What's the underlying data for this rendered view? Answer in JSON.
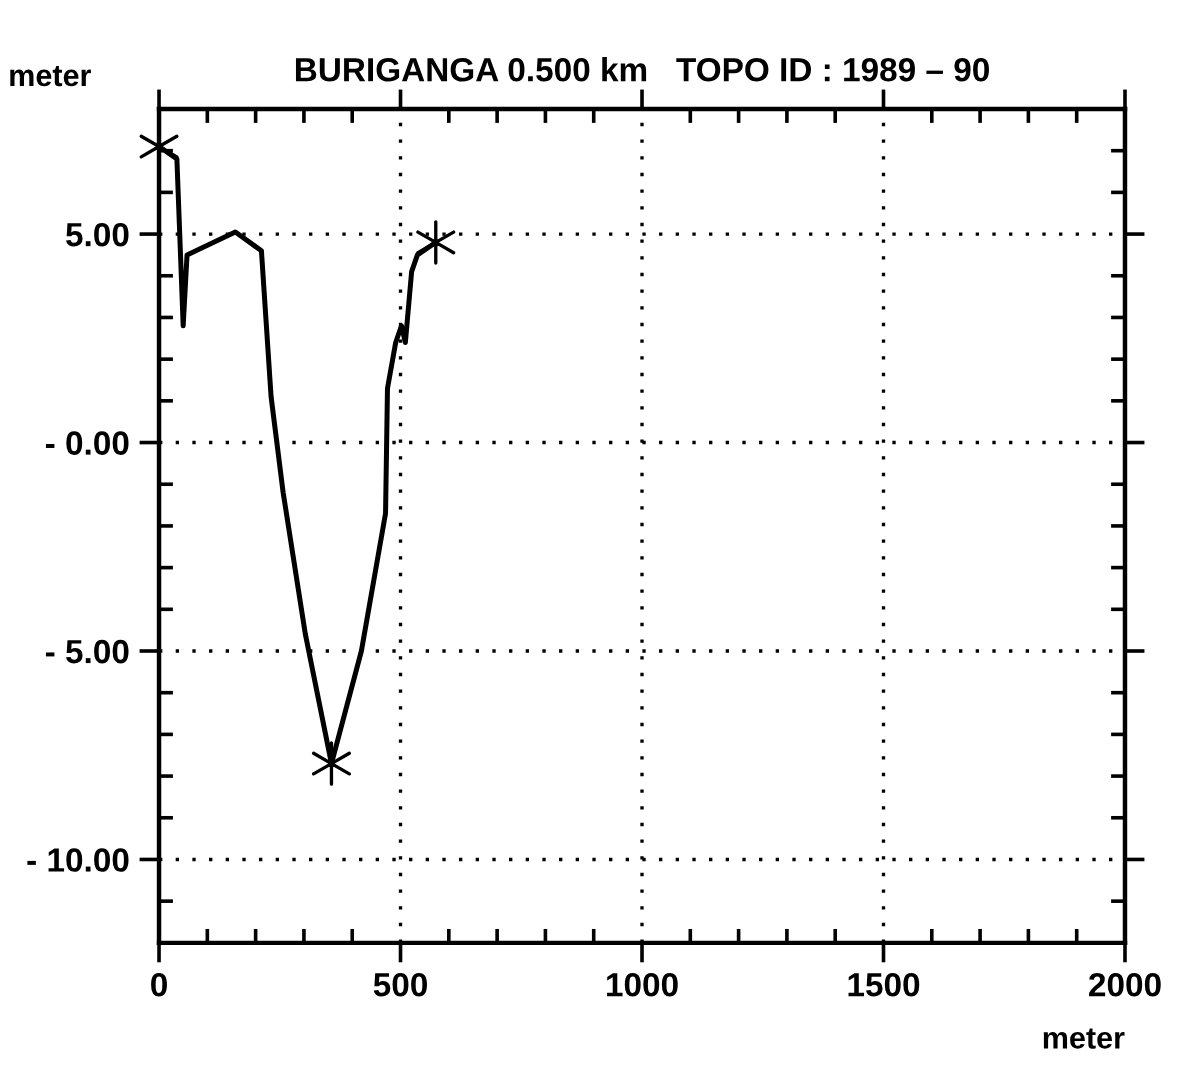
{
  "chart_data": {
    "type": "line",
    "title": "BURIGANGA 0.500 km   TOPO ID : 1989 – 90",
    "xlabel": "meter",
    "ylabel": "meter",
    "xlim": [
      0,
      2000
    ],
    "xticks": [
      0,
      500,
      1000,
      1500,
      2000
    ],
    "ylim": [
      -12,
      8
    ],
    "yticks": [
      {
        "value": 5,
        "label": "5.00"
      },
      {
        "value": 0,
        "label": "- 0.00"
      },
      {
        "value": -5,
        "label": "- 5.00"
      },
      {
        "value": -10,
        "label": "- 10.00"
      }
    ],
    "grid": true,
    "line_style": "solid",
    "series": [
      {
        "color": "#000000",
        "marker": "none",
        "x": [
          0,
          37,
          50,
          58,
          158,
          212,
          232,
          257,
          303,
          357,
          419,
          469,
          473,
          490,
          502,
          510,
          523,
          535,
          573
        ],
        "values": [
          7.1,
          6.8,
          2.8,
          4.5,
          5.05,
          4.6,
          1.1,
          -1.2,
          -4.6,
          -7.7,
          -5.0,
          -1.7,
          1.3,
          2.4,
          2.8,
          2.4,
          4.1,
          4.5,
          4.8
        ]
      },
      {
        "type": "scatter",
        "color": "#000000",
        "marker": "cross",
        "x": [
          0,
          357,
          573
        ],
        "values": [
          7.1,
          -7.7,
          4.8
        ]
      }
    ]
  }
}
